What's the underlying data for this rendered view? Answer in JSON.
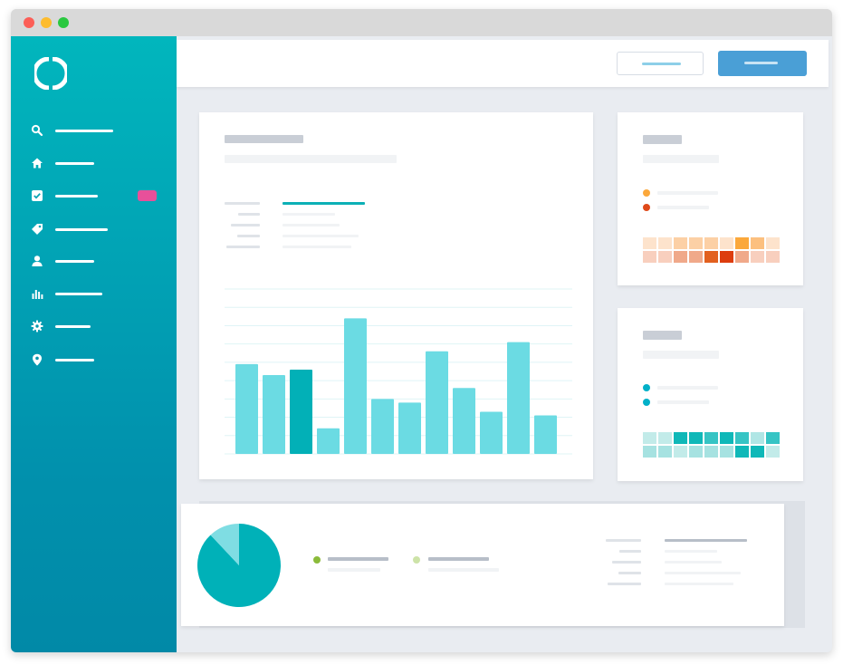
{
  "window": {
    "traffic_lights": [
      "close",
      "minimize",
      "zoom"
    ]
  },
  "sidebar": {
    "logo_icon": "ring-logo-icon",
    "items": [
      {
        "icon": "search-icon",
        "active": false,
        "badge": false
      },
      {
        "icon": "home-icon",
        "active": true,
        "badge": false
      },
      {
        "icon": "checkbox-icon",
        "active": false,
        "badge": true
      },
      {
        "icon": "tag-icon",
        "active": false,
        "badge": false
      },
      {
        "icon": "user-icon",
        "active": false,
        "badge": false
      },
      {
        "icon": "bar-chart-icon",
        "active": false,
        "badge": false
      },
      {
        "icon": "gear-icon",
        "active": false,
        "badge": false
      },
      {
        "icon": "location-pin-icon",
        "active": false,
        "badge": false
      }
    ],
    "colors": {
      "badge": "#e8509a",
      "active_bg": "#017f92"
    }
  },
  "header": {
    "secondary_button": {
      "style": "outline"
    },
    "primary_button": {
      "style": "filled",
      "color": "#4a9fd6"
    }
  },
  "main_chart_card": {
    "chart_data": {
      "type": "bar",
      "values": [
        49,
        43,
        46,
        14,
        74,
        30,
        28,
        56,
        36,
        23,
        61,
        21
      ],
      "highlighted_index": 2,
      "ylim": [
        0,
        90
      ],
      "grid": true,
      "colors": {
        "bar": "#6bdbe3",
        "highlight": "#02b0b7",
        "grid": "#dff4f6"
      }
    }
  },
  "side_card_1": {
    "legend_colors": [
      "#fba83b",
      "#df4a1a"
    ],
    "heatmap_colors": [
      "#fde3cc",
      "#fde3cc",
      "#fcd0a5",
      "#fcd0a5",
      "#fcd0a5",
      "#fde3cc",
      "#fba83b",
      "#fcc07f",
      "#fde3cc",
      "#f8cfbe",
      "#f8cfbe",
      "#f0a98a",
      "#f0a98a",
      "#e2601f",
      "#dd3d0e",
      "#f0a98a",
      "#f8cfbe",
      "#f8cfbe"
    ]
  },
  "side_card_2": {
    "legend_colors": [
      "#02b0c8",
      "#02b0c8"
    ],
    "heatmap_colors": [
      "#c2ebe9",
      "#c2ebe9",
      "#0fb8b8",
      "#0fb8b8",
      "#36c4c4",
      "#0fb8b8",
      "#36c4c4",
      "#b0e6e5",
      "#36c4c4",
      "#a6e2e1",
      "#a6e2e1",
      "#c2ebe9",
      "#a6e2e1",
      "#a6e2e1",
      "#a6e2e1",
      "#0fb8b8",
      "#0fb8b8",
      "#c2ebe9"
    ]
  },
  "bottom_card": {
    "chart_data": {
      "type": "pie",
      "values": [
        88,
        12
      ],
      "colors": [
        "#00b1b8",
        "#7fdde3"
      ]
    },
    "legend_colors": [
      "#8bbb3a",
      "#cde3a8"
    ]
  }
}
